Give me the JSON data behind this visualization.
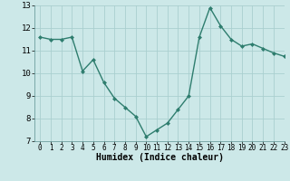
{
  "x": [
    0,
    1,
    2,
    3,
    4,
    5,
    6,
    7,
    8,
    9,
    10,
    11,
    12,
    13,
    14,
    15,
    16,
    17,
    18,
    19,
    20,
    21,
    22,
    23
  ],
  "y": [
    11.6,
    11.5,
    11.5,
    11.6,
    10.1,
    10.6,
    9.6,
    8.9,
    8.5,
    8.1,
    7.2,
    7.5,
    7.8,
    8.4,
    9.0,
    11.6,
    12.9,
    12.1,
    11.5,
    11.2,
    11.3,
    11.1,
    10.9,
    10.75
  ],
  "line_color": "#2e7d6e",
  "marker": "D",
  "marker_size": 2.0,
  "linewidth": 1.0,
  "bg_color": "#cce8e8",
  "grid_color": "#aacfcf",
  "grid_color_major": "#b8d8d8",
  "xlabel": "Humidex (Indice chaleur)",
  "xlabel_fontsize": 7,
  "tick_fontsize": 6.5,
  "ylim": [
    7,
    13
  ],
  "xlim": [
    -0.5,
    23
  ],
  "yticks": [
    7,
    8,
    9,
    10,
    11,
    12,
    13
  ],
  "xticks": [
    0,
    1,
    2,
    3,
    4,
    5,
    6,
    7,
    8,
    9,
    10,
    11,
    12,
    13,
    14,
    15,
    16,
    17,
    18,
    19,
    20,
    21,
    22,
    23
  ]
}
